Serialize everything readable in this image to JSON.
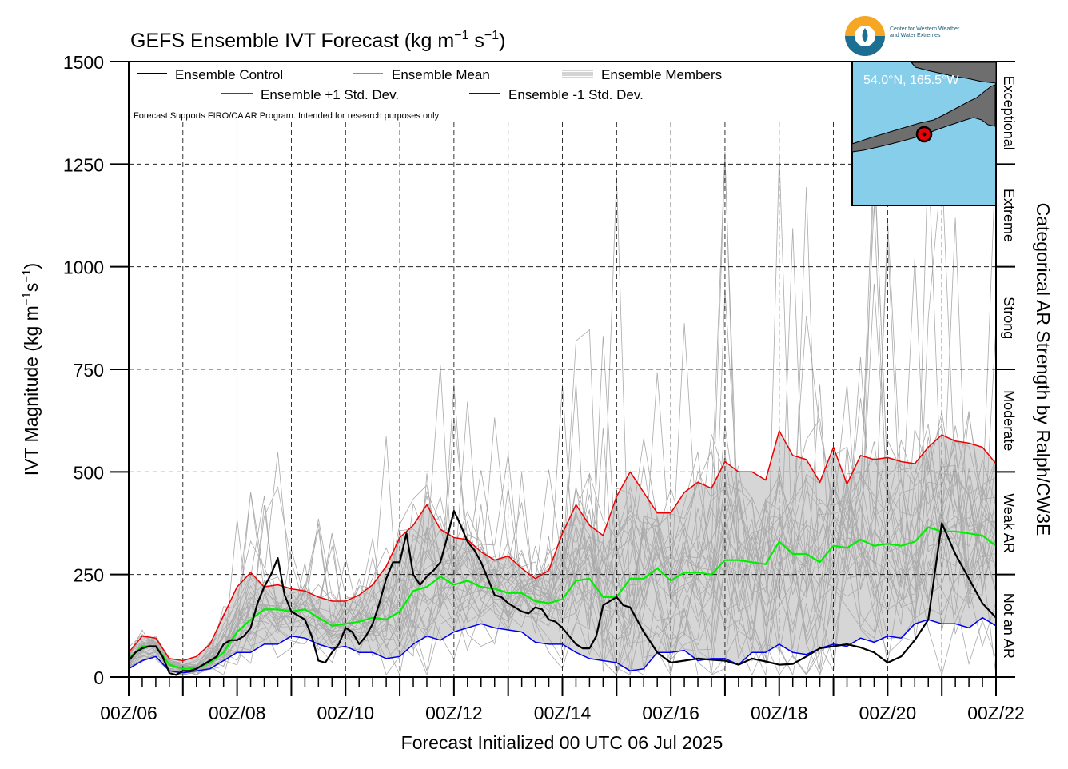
{
  "logo": {
    "line1": "Center for Western Weather",
    "line2": "and Water Extremes"
  },
  "inset": {
    "location_label": "54.0°N, 165.5°W"
  },
  "colors": {
    "control": "#000000",
    "mean": "#00ee00",
    "plus_std": "#ee0000",
    "minus_std": "#0000ee",
    "members": "#aaaaaa",
    "spread_fill": "#d6d6d6",
    "inset_ocean": "#87ceeb",
    "inset_land": "#6e6e6e",
    "marker": "#ee0000"
  },
  "chart_data": {
    "type": "line",
    "title": "GEFS Ensemble IVT Forecast (kg m⁻¹ s⁻¹)",
    "title_parts": {
      "main": "GEFS Ensemble IVT Forecast (kg m",
      "sup1": "−1",
      "mid": " s",
      "sup2": "−1",
      "end": ")"
    },
    "xlabel": "Forecast Initialized 00 UTC 06 Jul 2025",
    "ylabel": "IVT Magnitude (kg m⁻¹s⁻¹)",
    "ylabel_parts": {
      "main": "IVT Magnitude (kg m",
      "sup1": "−1",
      "mid": "s",
      "sup2": "−1",
      "end": ")"
    },
    "right_axis_label": "Categorical AR Strength by Ralph/CW3E",
    "note": "Forecast Supports FIRO/CA AR Program. Intended for research purposes only",
    "x_unit": "forecast hour",
    "xlim": [
      0,
      384
    ],
    "ylim": [
      0,
      1500
    ],
    "x_ticks": [
      {
        "hour": 0,
        "label": "00Z/06"
      },
      {
        "hour": 48,
        "label": "00Z/08"
      },
      {
        "hour": 96,
        "label": "00Z/10"
      },
      {
        "hour": 144,
        "label": "00Z/12"
      },
      {
        "hour": 192,
        "label": "00Z/14"
      },
      {
        "hour": 240,
        "label": "00Z/16"
      },
      {
        "hour": 288,
        "label": "00Z/18"
      },
      {
        "hour": 336,
        "label": "00Z/20"
      },
      {
        "hour": 384,
        "label": "00Z/22"
      }
    ],
    "y_ticks": [
      {
        "value": 0,
        "label": "0"
      },
      {
        "value": 250,
        "label": "250"
      },
      {
        "value": 500,
        "label": "500"
      },
      {
        "value": 750,
        "label": "750"
      },
      {
        "value": 1000,
        "label": "1000"
      },
      {
        "value": 1250,
        "label": "1250"
      },
      {
        "value": 1500,
        "label": "1500"
      }
    ],
    "categories": [
      {
        "label": "Not an AR",
        "range": [
          0,
          250
        ]
      },
      {
        "label": "Weak AR",
        "range": [
          250,
          500
        ]
      },
      {
        "label": "Moderate",
        "range": [
          500,
          750
        ]
      },
      {
        "label": "Strong",
        "range": [
          750,
          1000
        ]
      },
      {
        "label": "Extreme",
        "range": [
          1000,
          1250
        ]
      },
      {
        "label": "Exceptional",
        "range": [
          1250,
          1500
        ]
      }
    ],
    "grid": true,
    "legend_position": "top-left",
    "series": [
      {
        "name": "Ensemble Control",
        "key": "control",
        "x": [
          0,
          3,
          6,
          9,
          12,
          15,
          18,
          21,
          24,
          27,
          30,
          33,
          36,
          39,
          42,
          45,
          48,
          51,
          54,
          57,
          60,
          63,
          66,
          69,
          72,
          75,
          78,
          81,
          84,
          87,
          90,
          93,
          96,
          99,
          102,
          105,
          108,
          111,
          114,
          117,
          120,
          123,
          126,
          129,
          132,
          135,
          138,
          141,
          144,
          147,
          150,
          153,
          156,
          159,
          162,
          165,
          168,
          171,
          174,
          177,
          180,
          183,
          186,
          189,
          192,
          195,
          198,
          201,
          204,
          207,
          210,
          213,
          216,
          219,
          222,
          225,
          228,
          234,
          240,
          246,
          252,
          258,
          264,
          270,
          276,
          282,
          288,
          294,
          300,
          306,
          312,
          318,
          324,
          330,
          336,
          342,
          348,
          354,
          360,
          366,
          372,
          378,
          384
        ],
        "y": [
          40,
          60,
          70,
          75,
          75,
          50,
          10,
          5,
          15,
          15,
          20,
          30,
          40,
          50,
          80,
          90,
          90,
          100,
          120,
          180,
          220,
          250,
          290,
          200,
          160,
          150,
          140,
          100,
          40,
          35,
          60,
          80,
          120,
          110,
          80,
          100,
          130,
          180,
          240,
          280,
          280,
          350,
          250,
          225,
          245,
          260,
          280,
          340,
          405,
          370,
          330,
          310,
          280,
          240,
          200,
          195,
          180,
          170,
          160,
          155,
          170,
          165,
          140,
          135,
          120,
          100,
          80,
          70,
          70,
          100,
          175,
          185,
          195,
          175,
          170,
          140,
          110,
          60,
          35,
          40,
          45,
          42,
          40,
          30,
          45,
          38,
          30,
          32,
          50,
          70,
          75,
          80,
          72,
          60,
          35,
          50,
          90,
          140,
          375,
          300,
          240,
          180,
          145
        ]
      },
      {
        "name": "Ensemble Mean",
        "key": "mean",
        "x": [
          0,
          6,
          12,
          18,
          24,
          30,
          36,
          42,
          48,
          54,
          60,
          66,
          72,
          78,
          84,
          90,
          96,
          102,
          108,
          114,
          120,
          126,
          132,
          138,
          144,
          150,
          156,
          162,
          168,
          174,
          180,
          186,
          192,
          198,
          204,
          210,
          216,
          222,
          228,
          234,
          240,
          246,
          252,
          258,
          264,
          270,
          276,
          282,
          288,
          294,
          300,
          306,
          312,
          318,
          324,
          330,
          336,
          342,
          348,
          354,
          360,
          366,
          372,
          378,
          384
        ],
        "y": [
          45,
          75,
          75,
          30,
          20,
          22,
          35,
          60,
          110,
          140,
          165,
          165,
          160,
          165,
          145,
          125,
          130,
          135,
          145,
          140,
          160,
          210,
          220,
          245,
          225,
          235,
          220,
          215,
          205,
          205,
          185,
          180,
          190,
          235,
          240,
          195,
          195,
          240,
          240,
          265,
          235,
          255,
          255,
          250,
          285,
          285,
          280,
          275,
          330,
          300,
          300,
          280,
          320,
          315,
          335,
          320,
          325,
          320,
          330,
          365,
          355,
          355,
          350,
          345,
          320
        ]
      },
      {
        "name": "Ensemble +1 Std. Dev.",
        "key": "plus_std",
        "x": [
          0,
          6,
          12,
          18,
          24,
          30,
          36,
          42,
          48,
          54,
          60,
          66,
          72,
          78,
          84,
          90,
          96,
          102,
          108,
          114,
          120,
          126,
          132,
          138,
          144,
          150,
          156,
          162,
          168,
          174,
          180,
          186,
          192,
          198,
          204,
          210,
          216,
          222,
          228,
          234,
          240,
          246,
          252,
          258,
          264,
          270,
          276,
          282,
          288,
          294,
          300,
          306,
          312,
          318,
          324,
          330,
          336,
          342,
          348,
          354,
          360,
          366,
          372,
          378,
          384
        ],
        "y": [
          60,
          100,
          95,
          45,
          40,
          50,
          80,
          150,
          220,
          255,
          220,
          225,
          215,
          210,
          195,
          185,
          185,
          200,
          225,
          270,
          340,
          370,
          420,
          360,
          340,
          335,
          305,
          285,
          295,
          265,
          240,
          260,
          350,
          420,
          370,
          345,
          440,
          500,
          450,
          400,
          400,
          450,
          475,
          460,
          525,
          500,
          500,
          480,
          600,
          540,
          530,
          475,
          560,
          470,
          540,
          530,
          535,
          525,
          520,
          560,
          590,
          575,
          570,
          560,
          520
        ]
      },
      {
        "name": "Ensemble -1 Std. Dev.",
        "key": "minus_std",
        "x": [
          0,
          6,
          12,
          18,
          24,
          30,
          36,
          42,
          48,
          54,
          60,
          66,
          72,
          78,
          84,
          90,
          96,
          102,
          108,
          114,
          120,
          126,
          132,
          138,
          144,
          150,
          156,
          162,
          168,
          174,
          180,
          186,
          192,
          198,
          204,
          210,
          216,
          222,
          228,
          234,
          240,
          246,
          252,
          258,
          264,
          270,
          276,
          282,
          288,
          294,
          300,
          306,
          312,
          318,
          324,
          330,
          336,
          342,
          348,
          354,
          360,
          366,
          372,
          378,
          384
        ],
        "y": [
          20,
          40,
          50,
          15,
          10,
          15,
          20,
          40,
          60,
          60,
          80,
          80,
          100,
          95,
          80,
          70,
          75,
          60,
          60,
          45,
          50,
          80,
          100,
          90,
          110,
          120,
          130,
          120,
          115,
          110,
          85,
          80,
          80,
          60,
          45,
          40,
          35,
          15,
          20,
          60,
          60,
          65,
          40,
          45,
          45,
          30,
          60,
          60,
          80,
          60,
          55,
          70,
          80,
          75,
          95,
          85,
          100,
          95,
          130,
          140,
          130,
          130,
          120,
          145,
          125
        ]
      }
    ]
  }
}
